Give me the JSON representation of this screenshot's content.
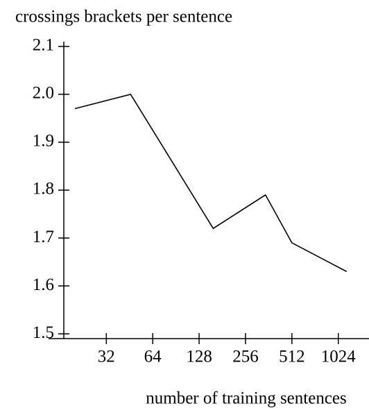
{
  "chart_data": {
    "type": "line",
    "y_label": "crossings brackets per sentence",
    "x_label": "number of training sentences",
    "x": [
      20,
      46,
      158,
      345,
      512,
      1160
    ],
    "series": [
      {
        "color": "#000000",
        "values": [
          1.97,
          2.0,
          1.72,
          1.79,
          1.69,
          1.63
        ]
      }
    ],
    "xscale": "log2",
    "xlim": [
      13.5,
      1620
    ],
    "xticks": [
      32,
      64,
      128,
      256,
      512,
      1024
    ],
    "ylim": [
      1.49,
      2.11
    ],
    "yticks": [
      {
        "value": 1.5,
        "label": "1.5"
      },
      {
        "value": 1.6,
        "label": "1.6"
      },
      {
        "value": 1.7,
        "label": "1.7"
      },
      {
        "value": 1.8,
        "label": "1.8"
      },
      {
        "value": 1.9,
        "label": "1.9"
      },
      {
        "value": 2.0,
        "label": "2.0"
      },
      {
        "value": 2.1,
        "label": "2.1"
      }
    ]
  }
}
